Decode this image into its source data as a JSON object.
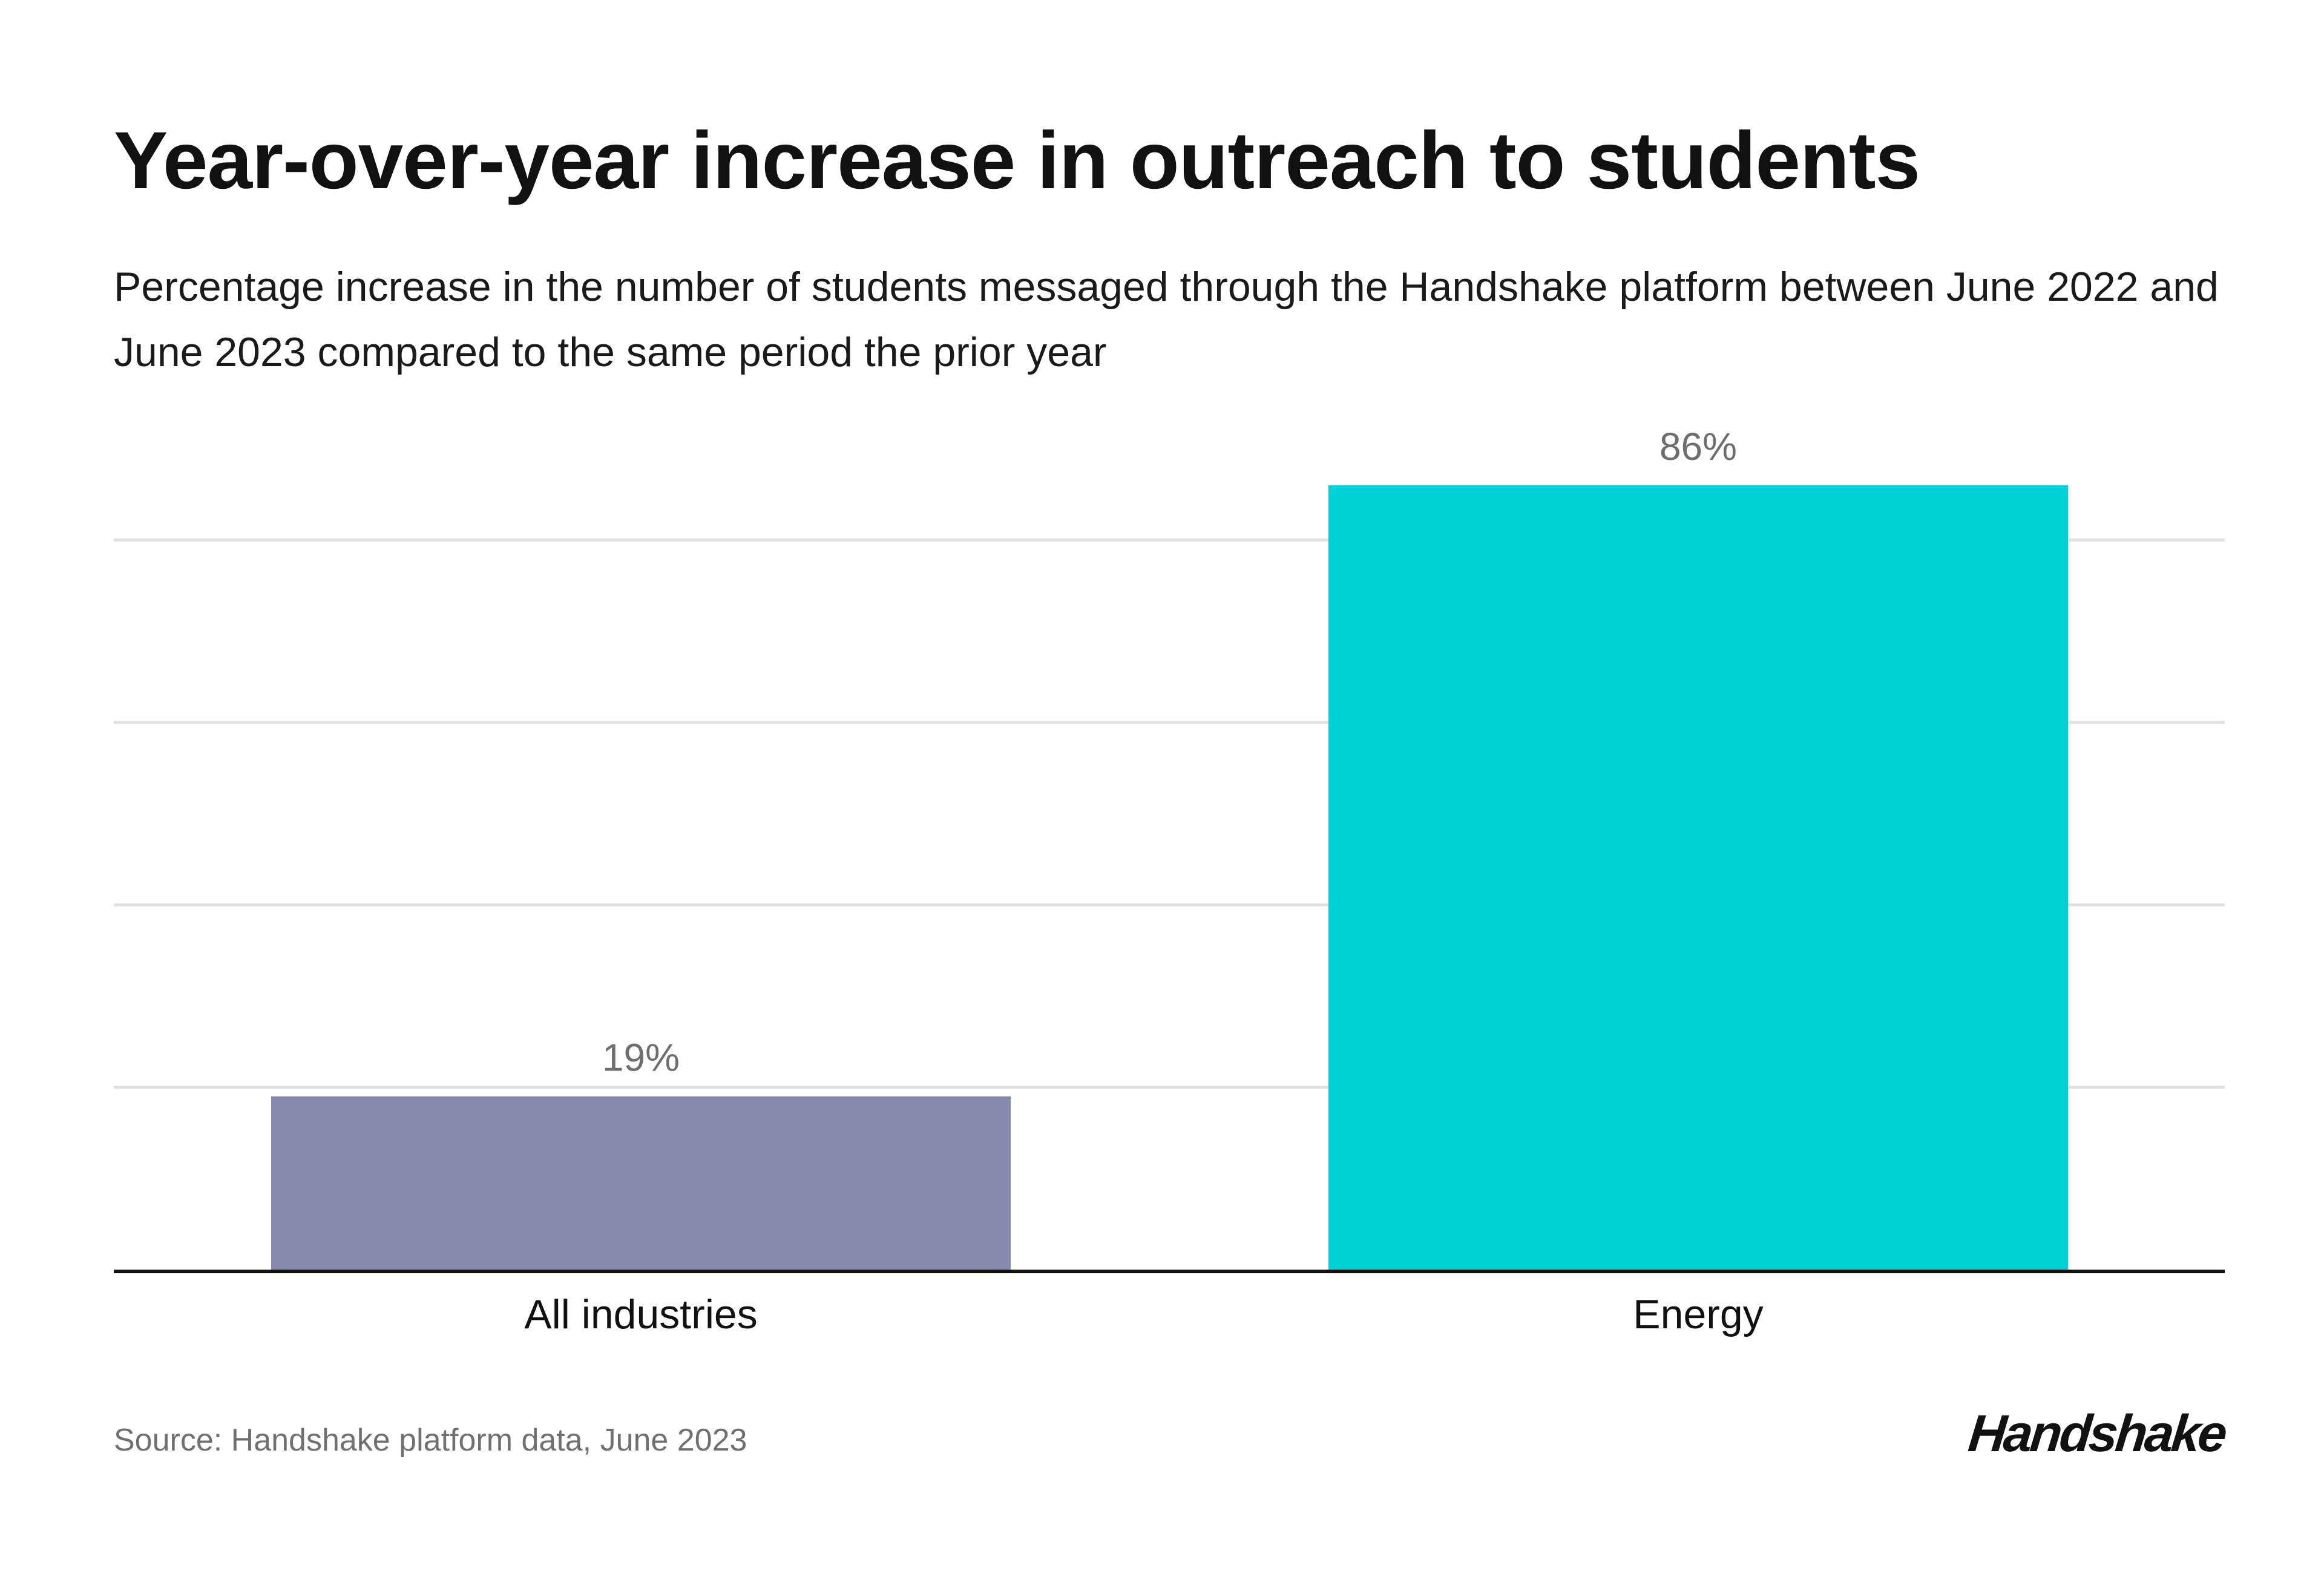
{
  "title": "Year-over-year increase in outreach to students",
  "subtitle": "Percentage increase in the number of students messaged through the Handshake platform between June 2022 and June 2023 compared to the same period the prior year",
  "source": "Source: Handshake platform data, June 2023",
  "logo_text": "Handshake",
  "colors": {
    "all_industries_bar": "#8889AE",
    "energy_bar": "#00D2D6",
    "gridline": "#E2E2E2",
    "axis": "#111111",
    "value_label": "#6E6E6E"
  },
  "chart_data": {
    "type": "bar",
    "title": "Year-over-year increase in outreach to students",
    "xlabel": "",
    "ylabel": "",
    "categories": [
      "All industries",
      "Energy"
    ],
    "values": [
      19,
      86
    ],
    "value_labels": [
      "19%",
      "86%"
    ],
    "ylim": [
      0,
      86
    ],
    "grid": true,
    "gridline_values": [
      20,
      40,
      60,
      80
    ],
    "legend": "none"
  }
}
